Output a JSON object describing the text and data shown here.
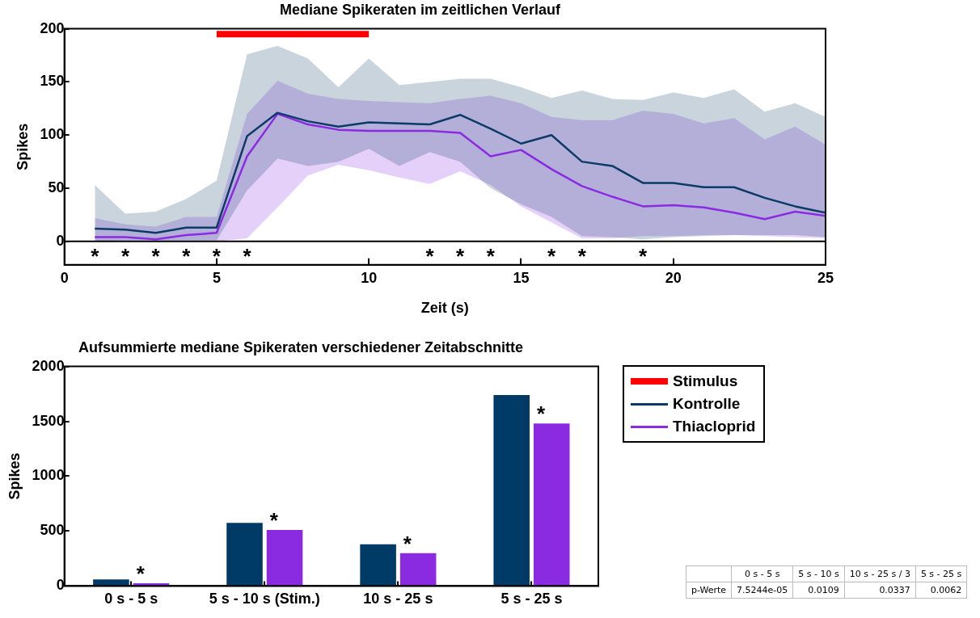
{
  "chart_data": [
    {
      "type": "line",
      "title": "Mediane Spikeraten im zeitlichen Verlauf",
      "xlabel": "Zeit (s)",
      "ylabel": "Spikes",
      "x": [
        1,
        2,
        3,
        4,
        5,
        6,
        7,
        8,
        9,
        10,
        11,
        12,
        13,
        14,
        15,
        16,
        17,
        18,
        19,
        20,
        21,
        22,
        23,
        24,
        25
      ],
      "xlim": [
        0,
        25
      ],
      "xticks": [
        0,
        5,
        10,
        15,
        20,
        25
      ],
      "ylim": [
        -22,
        200
      ],
      "yticks": [
        0,
        50,
        100,
        150,
        200
      ],
      "legend": "right",
      "grid": false,
      "ref_lines": [
        {
          "axis": "y",
          "value": 0,
          "color": "#000000"
        }
      ],
      "series": [
        {
          "name": "Stimulus",
          "color": "#ff0000",
          "x": [
            5,
            10
          ],
          "values": [
            195,
            195
          ]
        },
        {
          "name": "Kontrolle",
          "color": "#0b3b66",
          "values": [
            12,
            11,
            8,
            13,
            13,
            99,
            121,
            113,
            108,
            112,
            111,
            110,
            119,
            106,
            92,
            100,
            75,
            71,
            55,
            55,
            51,
            51,
            41,
            33,
            27
          ],
          "lower": [
            0,
            1,
            1,
            1,
            1,
            48,
            78,
            71,
            75,
            87,
            71,
            84,
            75,
            50,
            35,
            23,
            5,
            4,
            2,
            4,
            5,
            6,
            6,
            6,
            4
          ],
          "upper": [
            53,
            26,
            28,
            40,
            57,
            176,
            184,
            172,
            145,
            172,
            147,
            150,
            153,
            153,
            145,
            135,
            142,
            134,
            133,
            140,
            135,
            143,
            122,
            130,
            117
          ]
        },
        {
          "name": "Thiacloprid",
          "color": "#8a2be2",
          "values": [
            4,
            4,
            2,
            6,
            8,
            80,
            120,
            110,
            105,
            104,
            104,
            104,
            102,
            80,
            86,
            68,
            52,
            42,
            33,
            34,
            32,
            27,
            21,
            28,
            24
          ],
          "lower": [
            0,
            0,
            0,
            0,
            0,
            3,
            32,
            62,
            72,
            67,
            60,
            54,
            66,
            53,
            33,
            18,
            3,
            3,
            5,
            5,
            6,
            6,
            5,
            4,
            3
          ],
          "upper": [
            22,
            16,
            14,
            23,
            23,
            120,
            151,
            139,
            134,
            132,
            131,
            130,
            134,
            137,
            130,
            117,
            114,
            114,
            123,
            120,
            111,
            116,
            96,
            108,
            91
          ]
        }
      ],
      "annotations": [
        {
          "text": "*",
          "x": 1,
          "y": 0
        },
        {
          "text": "*",
          "x": 2,
          "y": 0
        },
        {
          "text": "*",
          "x": 3,
          "y": 0
        },
        {
          "text": "*",
          "x": 4,
          "y": 0
        },
        {
          "text": "*",
          "x": 5,
          "y": 0
        },
        {
          "text": "*",
          "x": 6,
          "y": 0
        },
        {
          "text": "*",
          "x": 12,
          "y": 0
        },
        {
          "text": "*",
          "x": 13,
          "y": 0
        },
        {
          "text": "*",
          "x": 14,
          "y": 0
        },
        {
          "text": "*",
          "x": 16,
          "y": 0
        },
        {
          "text": "*",
          "x": 17,
          "y": 0
        },
        {
          "text": "*",
          "x": 19,
          "y": 0
        }
      ]
    },
    {
      "type": "bar",
      "title": "Aufsummierte mediane Spikeraten verschiedener Zeitabschnitte",
      "ylabel": "Spikes",
      "categories": [
        "0 s - 5 s",
        "5 s - 10 s (Stim.)",
        "10 s - 25 s",
        "5 s - 25 s"
      ],
      "ylim": [
        0,
        2000
      ],
      "yticks": [
        0,
        500,
        1000,
        1500,
        2000
      ],
      "grid": false,
      "series": [
        {
          "color": "#003a66",
          "values": [
            60,
            575,
            380,
            1740
          ]
        },
        {
          "color": "#8a2be2",
          "values": [
            25,
            510,
            300,
            1480
          ]
        }
      ],
      "annotations": [
        {
          "text": "*",
          "x": "0 s - 5 s",
          "y": 25
        },
        {
          "text": "*",
          "x": "5 s - 10 s (Stim.)",
          "y": 510
        },
        {
          "text": "*",
          "x": "10 s - 25 s",
          "y": 300
        },
        {
          "text": "*",
          "x": "5 s - 25 s",
          "y": 1480
        }
      ]
    },
    {
      "type": "other",
      "categories": [
        "0 s - 5 s",
        "5 s - 10 s",
        "10 s - 25 s / 3",
        "5 s - 25 s"
      ],
      "y_categories": [
        "p-Werte"
      ],
      "cell_labels": [
        [
          "7.5244e-05",
          "0.0109",
          "0.0337",
          "0.0062"
        ]
      ]
    }
  ]
}
